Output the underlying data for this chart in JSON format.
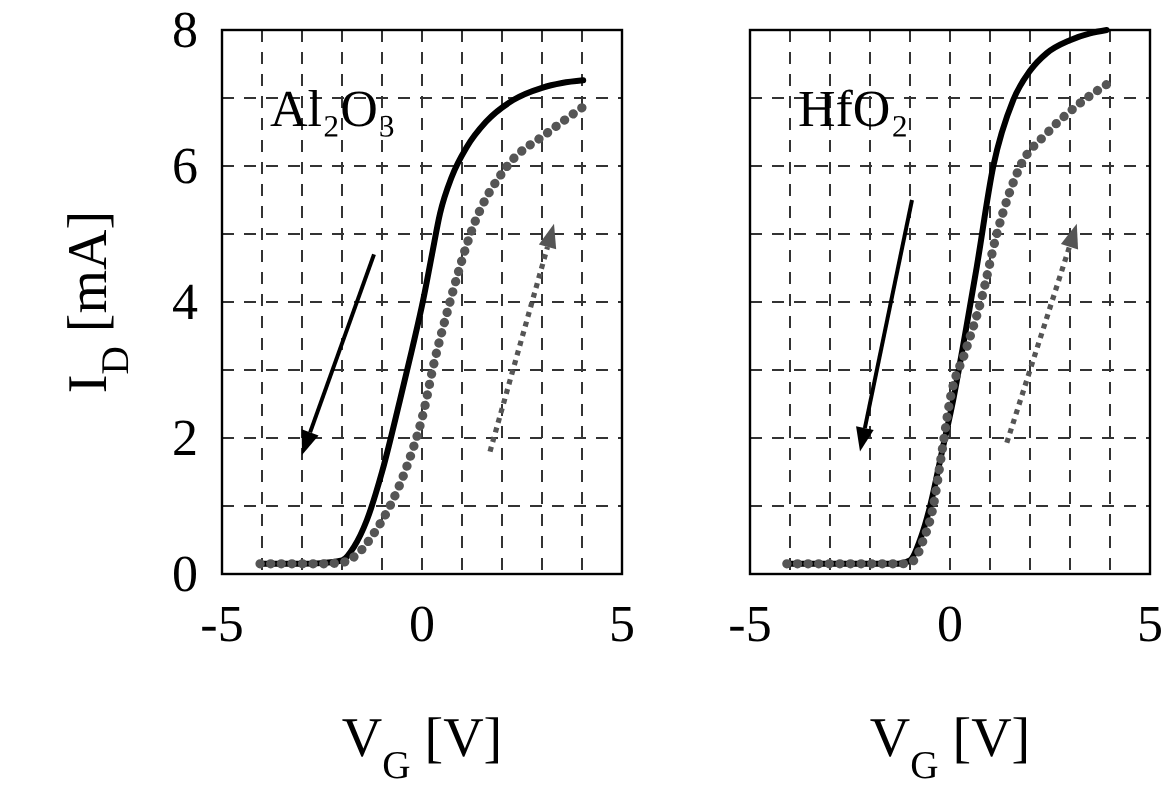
{
  "chart_data": [
    {
      "type": "line",
      "title": "Al₂O₃",
      "xlabel": "V$_{G}$ [V]",
      "ylabel": "I$_{D}$ [mA]",
      "xlim": [
        -5,
        5
      ],
      "ylim": [
        0,
        8
      ],
      "xticks": [
        -5,
        {
          "value": -4,
          "label": null
        },
        {
          "value": -3,
          "label": null
        },
        {
          "value": -2,
          "label": null
        },
        {
          "value": -1,
          "label": null
        },
        0,
        {
          "value": 1,
          "label": null
        },
        {
          "value": 2,
          "label": null
        },
        {
          "value": 3,
          "label": null
        },
        {
          "value": 4,
          "label": null
        },
        5
      ],
      "yticks": [
        0,
        {
          "value": 1,
          "label": null
        },
        2,
        {
          "value": 3,
          "label": null
        },
        4,
        {
          "value": 5,
          "label": null
        },
        6,
        {
          "value": 7,
          "label": null
        },
        8
      ],
      "grid": true,
      "series": [
        {
          "color": "#000000",
          "line_style": "solid",
          "x": [
            -4.05,
            -3,
            -2.5,
            -2,
            -1.7,
            -1.38,
            -1,
            -0.55,
            -0.25,
            0.03,
            0.25,
            0.45,
            0.75,
            1.12,
            1.6,
            2.28,
            3,
            3.5,
            4.03
          ],
          "values": [
            0.15,
            0.15,
            0.16,
            0.2,
            0.4,
            0.79,
            1.5,
            2.56,
            3.3,
            4.03,
            4.7,
            5.3,
            5.85,
            6.28,
            6.65,
            6.97,
            7.15,
            7.22,
            7.26
          ]
        },
        {
          "color": "#555555",
          "line_style": "dotted",
          "x": [
            -4.05,
            -3,
            -2.5,
            -2,
            -1.6,
            -1.2,
            -0.8,
            -0.38,
            0.03,
            0.3,
            0.62,
            1.28,
            2.12,
            3.12,
            4.03
          ],
          "values": [
            0.15,
            0.15,
            0.15,
            0.17,
            0.3,
            0.6,
            1.0,
            1.58,
            2.36,
            3.1,
            3.83,
            5.11,
            5.99,
            6.48,
            6.87
          ]
        }
      ]
    },
    {
      "type": "line",
      "title": "HfO₂",
      "xlabel": "V$_{G}$ [V]",
      "xlim": [
        -5,
        5
      ],
      "ylim": [
        0,
        8
      ],
      "tick_labels": "x",
      "xticks": [
        -5,
        {
          "value": -4,
          "label": null
        },
        {
          "value": -3,
          "label": null
        },
        {
          "value": -2,
          "label": null
        },
        {
          "value": -1,
          "label": null
        },
        0,
        {
          "value": 1,
          "label": null
        },
        {
          "value": 2,
          "label": null
        },
        {
          "value": 3,
          "label": null
        },
        {
          "value": 4,
          "label": null
        },
        5
      ],
      "yticks": [
        {
          "value": 0,
          "label": null
        },
        {
          "value": 1,
          "label": null
        },
        {
          "value": 2,
          "label": null
        },
        {
          "value": 3,
          "label": null
        },
        {
          "value": 4,
          "label": null
        },
        {
          "value": 5,
          "label": null
        },
        {
          "value": 6,
          "label": null
        },
        {
          "value": 7,
          "label": null
        },
        {
          "value": 8,
          "label": null
        }
      ],
      "grid": true,
      "series": [
        {
          "color": "#000000",
          "line_style": "solid",
          "x": [
            -4.08,
            -3,
            -2,
            -1.3,
            -1,
            -0.75,
            -0.5,
            -0.2,
            0.08,
            0.4,
            0.67,
            1.08,
            1.58,
            2.0,
            2.42,
            3.0,
            3.5,
            3.92
          ],
          "values": [
            0.15,
            0.15,
            0.15,
            0.15,
            0.2,
            0.5,
            0.99,
            1.8,
            2.56,
            3.6,
            4.52,
            5.99,
            6.97,
            7.4,
            7.66,
            7.85,
            7.95,
            8.0
          ]
        },
        {
          "color": "#555555",
          "line_style": "dotted",
          "x": [
            -4.08,
            -3,
            -2,
            -1.2,
            -0.9,
            -0.7,
            -0.42,
            -0.2,
            0,
            0.4,
            0.78,
            1.17,
            1.75,
            2.42,
            3.2,
            4.08
          ],
          "values": [
            0.15,
            0.15,
            0.15,
            0.15,
            0.2,
            0.45,
            0.99,
            1.8,
            2.56,
            3.3,
            4.03,
            5.0,
            5.99,
            6.48,
            6.9,
            7.26
          ]
        }
      ]
    }
  ]
}
